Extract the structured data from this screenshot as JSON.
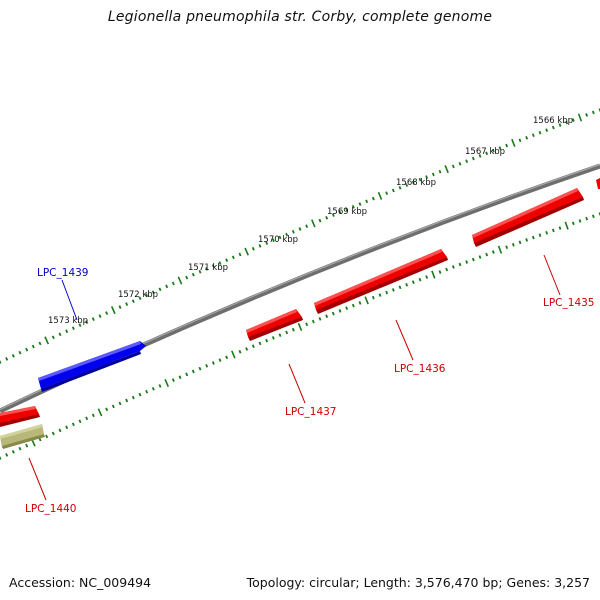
{
  "title": "Legionella pneumophila str. Corby, complete genome",
  "footer": {
    "accession": "Accession: NC_009494",
    "summary": "Topology: circular; Length: 3,576,470 bp; Genes: 3,257"
  },
  "colors": {
    "backbone": "#7a7a7a",
    "tick": "#1a7a1a",
    "forward_gene": "#0000ee",
    "reverse_gene": "#ee0000",
    "other_feature": "#b8b87a",
    "forward_label": "#0000cc",
    "reverse_label": "#cc0000"
  },
  "scale_labels": [
    "1566 kbp",
    "1567 kbp",
    "1568 kbp",
    "1569 kbp",
    "1570 kbp",
    "1571 kbp",
    "1572 kbp",
    "1573 kbp"
  ],
  "gene_labels": [
    "LPC_1435",
    "LPC_1436",
    "LPC_1437",
    "LPC_1439",
    "LPC_1440"
  ]
}
